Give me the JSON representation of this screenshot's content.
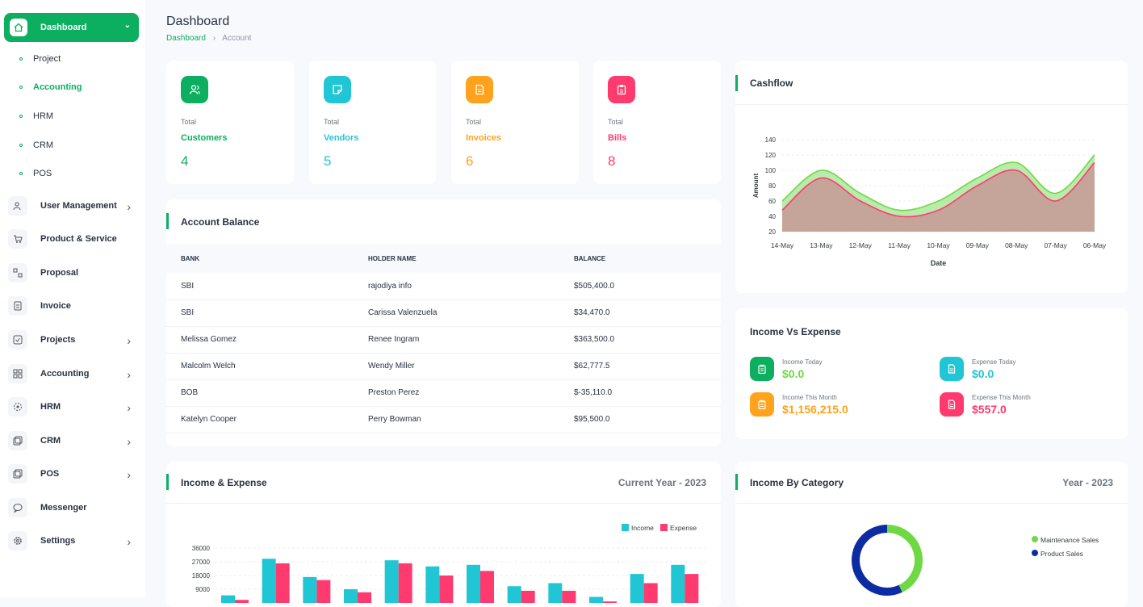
{
  "sidebar": {
    "dashboard": "Dashboard",
    "sub": [
      "Project",
      "Accounting",
      "HRM",
      "CRM",
      "POS"
    ],
    "items": [
      "User Management",
      "Product & Service",
      "Proposal",
      "Invoice",
      "Projects",
      "Accounting",
      "HRM",
      "CRM",
      "POS",
      "Messenger",
      "Settings"
    ]
  },
  "header": {
    "title": "Dashboard",
    "crumb1": "Dashboard",
    "crumb2": "Account"
  },
  "stats": [
    {
      "label": "Total",
      "name": "Customers",
      "value": "4",
      "color": "#0caf60"
    },
    {
      "label": "Total",
      "name": "Vendors",
      "value": "5",
      "color": "#21c6d4"
    },
    {
      "label": "Total",
      "name": "Invoices",
      "value": "6",
      "color": "#ffa21d"
    },
    {
      "label": "Total",
      "name": "Bills",
      "value": "8",
      "color": "#ff3a6e"
    }
  ],
  "balance": {
    "title": "Account Balance",
    "columns": [
      "BANK",
      "HOLDER NAME",
      "BALANCE"
    ],
    "rows": [
      [
        "SBI",
        "rajodiya info",
        "$505,400.0"
      ],
      [
        "SBI",
        "Carissa Valenzuela",
        "$34,470.0"
      ],
      [
        "Melissa Gomez",
        "Renee Ingram",
        "$363,500.0"
      ],
      [
        "Malcolm Welch",
        "Wendy Miller",
        "$62,777.5"
      ],
      [
        "BOB",
        "Preston Perez",
        "$-35,110.0"
      ],
      [
        "Katelyn Cooper",
        "Perry Bowman",
        "$95,500.0"
      ]
    ]
  },
  "cashflow": {
    "title": "Cashflow"
  },
  "ive": {
    "title": "Income Vs Expense",
    "income_today_label": "Income Today",
    "income_today": "$0.0",
    "expense_today_label": "Expense Today",
    "expense_today": "$0.0",
    "income_month_label": "Income This Month",
    "income_month": "$1,156,215.0",
    "expense_month_label": "Expense This Month",
    "expense_month": "$557.0"
  },
  "income_expense": {
    "title": "Income & Expense",
    "period": "Current Year - 2023"
  },
  "by_category": {
    "title": "Income By Category",
    "period": "Year - 2023"
  },
  "chart_data": [
    {
      "type": "area",
      "title": "",
      "xlabel": "Date",
      "ylabel": "Amount",
      "categories": [
        "14-May",
        "13-May",
        "12-May",
        "11-May",
        "10-May",
        "09-May",
        "08-May",
        "07-May",
        "06-May"
      ],
      "ylim": [
        20,
        140
      ],
      "yticks": [
        20,
        40,
        60,
        80,
        100,
        120,
        140
      ],
      "series": [
        {
          "values": [
            60,
            100,
            70,
            48,
            60,
            90,
            110,
            70,
            120
          ],
          "color": "#6fd943"
        },
        {
          "values": [
            48,
            90,
            60,
            40,
            48,
            80,
            100,
            60,
            110
          ],
          "color": "#ff3a6e"
        }
      ]
    },
    {
      "type": "bar",
      "title": "",
      "legend": [
        "Income",
        "Expense"
      ],
      "yticks": [
        9000,
        18000,
        27000,
        36000
      ],
      "ylim": [
        0,
        36000
      ],
      "series": [
        {
          "name": "Income",
          "color": "#21c6d4",
          "values": [
            5000,
            29000,
            17000,
            9000,
            28000,
            24000,
            25000,
            11000,
            13000,
            4000,
            19000,
            25000
          ]
        },
        {
          "name": "Expense",
          "color": "#ff3a6e",
          "values": [
            2000,
            26000,
            15000,
            7000,
            26000,
            18000,
            21000,
            8000,
            8000,
            1000,
            13000,
            19000
          ]
        }
      ]
    },
    {
      "type": "pie",
      "legend": [
        "Maintenance Sales",
        "Product Sales"
      ],
      "values": [
        43,
        57
      ],
      "colors": [
        "#6fd943",
        "#0d2ba3"
      ]
    }
  ]
}
